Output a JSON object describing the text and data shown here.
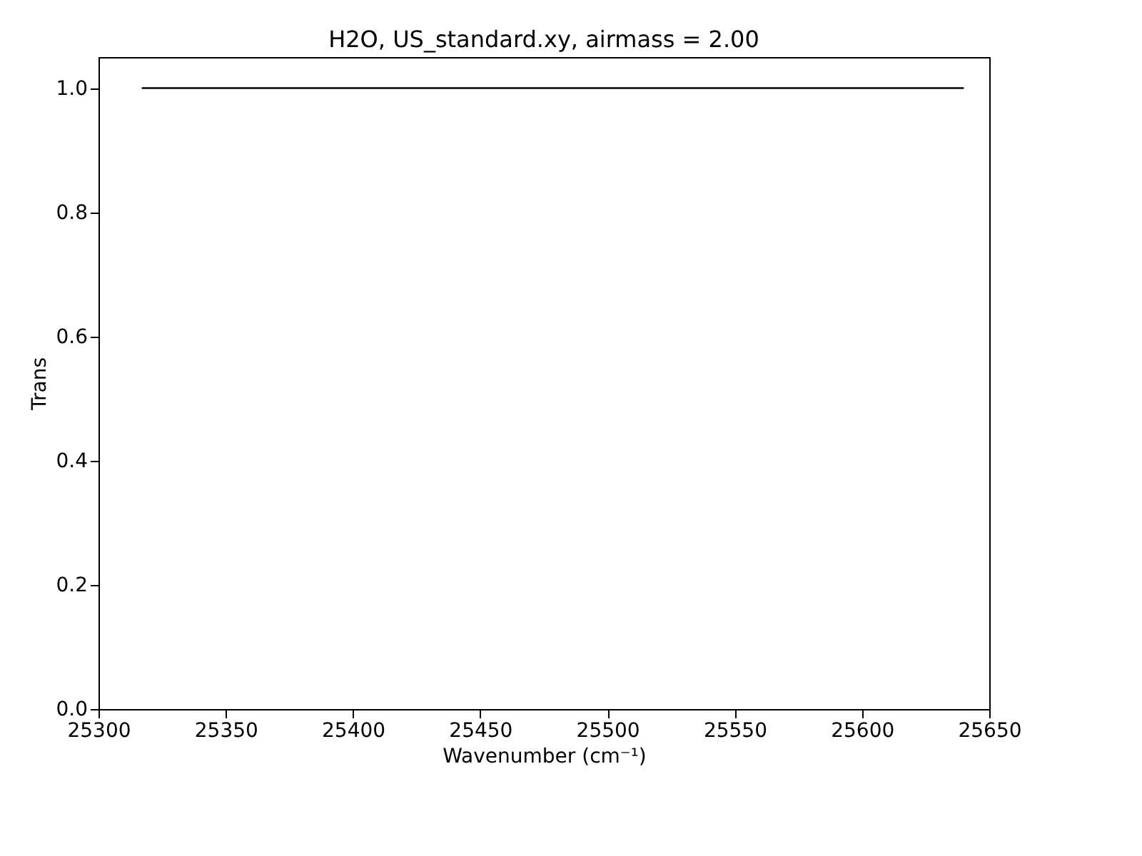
{
  "chart_data": {
    "type": "line",
    "title": "H2O, US_standard.xy, airmass = 2.00",
    "xlabel": "Wavenumber (cm⁻¹)",
    "ylabel": "Trans",
    "x": [
      25317,
      25640
    ],
    "series": [
      {
        "color": "#000000",
        "values": [
          1.0,
          1.0
        ]
      }
    ],
    "xlim": [
      25300,
      25650
    ],
    "xticks": [
      25300,
      25350,
      25400,
      25450,
      25500,
      25550,
      25600,
      25650
    ],
    "ylim": [
      0.0,
      1.05
    ],
    "yticks": [
      {
        "value": 0.0,
        "label": "0.0"
      },
      {
        "value": 0.2,
        "label": "0.2"
      },
      {
        "value": 0.4,
        "label": "0.4"
      },
      {
        "value": 0.6,
        "label": "0.6"
      },
      {
        "value": 0.8,
        "label": "0.8"
      },
      {
        "value": 1.0,
        "label": "1.0"
      }
    ],
    "grid": false,
    "marker": "none",
    "line_style": "solid"
  }
}
